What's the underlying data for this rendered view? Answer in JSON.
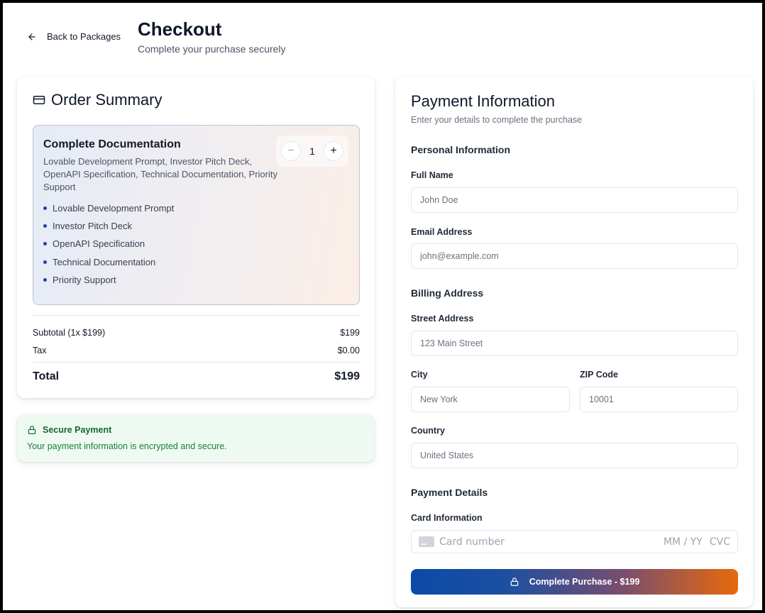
{
  "header": {
    "back_label": "Back to Packages",
    "title": "Checkout",
    "subtitle": "Complete your purchase securely"
  },
  "summary": {
    "title": "Order Summary",
    "package": {
      "name": "Complete Documentation",
      "description": "Lovable Development Prompt, Investor Pitch Deck, OpenAPI Specification, Technical Documentation, Priority Support",
      "quantity": "1",
      "minus_label": "−",
      "plus_label": "+",
      "features": [
        "Lovable Development Prompt",
        "Investor Pitch Deck",
        "OpenAPI Specification",
        "Technical Documentation",
        "Priority Support"
      ]
    },
    "subtotal_label": "Subtotal (1x $199)",
    "subtotal_value": "$199",
    "tax_label": "Tax",
    "tax_value": "$0.00",
    "total_label": "Total",
    "total_value": "$199"
  },
  "secure": {
    "title": "Secure Payment",
    "text": "Your payment information is encrypted and secure."
  },
  "payment": {
    "title": "Payment Information",
    "subtitle": "Enter your details to complete the purchase",
    "personal_title": "Personal Information",
    "full_name_label": "Full Name",
    "full_name_placeholder": "John Doe",
    "email_label": "Email Address",
    "email_placeholder": "john@example.com",
    "billing_title": "Billing Address",
    "street_label": "Street Address",
    "street_placeholder": "123 Main Street",
    "city_label": "City",
    "city_placeholder": "New York",
    "zip_label": "ZIP Code",
    "zip_placeholder": "10001",
    "country_label": "Country",
    "country_placeholder": "United States",
    "details_title": "Payment Details",
    "card_label": "Card Information",
    "card_number_placeholder": "Card number",
    "card_expiry_placeholder": "MM / YY",
    "card_cvc_placeholder": "CVC",
    "submit_label": "Complete Purchase - $199"
  },
  "colors": {
    "accent_blue": "#0b4aa8",
    "accent_orange": "#e8690c",
    "secure_green": "#15803d"
  }
}
